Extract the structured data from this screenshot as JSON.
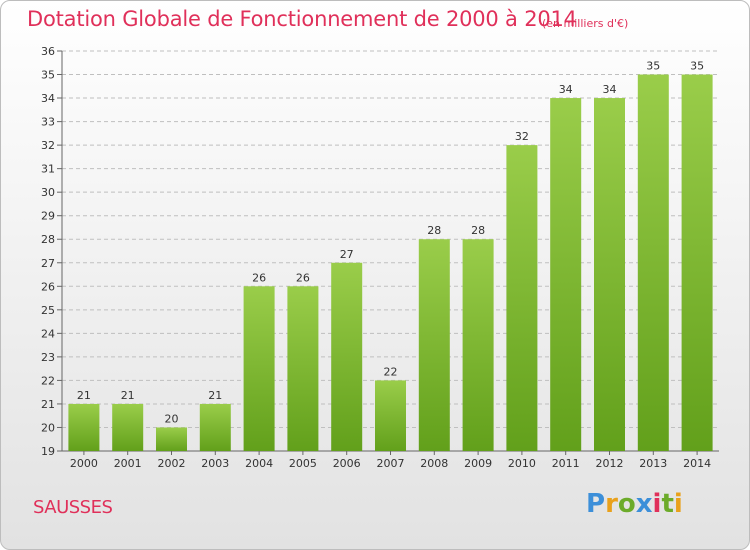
{
  "header": {
    "title": "Dotation Globale de Fonctionnement de 2000 à 2014",
    "subtitle": "(en milliers d'€)"
  },
  "footer": {
    "commune": "SAUSSES",
    "brand": "Proxiti"
  },
  "colors": {
    "title": "#e0305a",
    "bar_light": "#9acd4a",
    "bar_dark": "#62a01b",
    "grid": "#bfbfbf",
    "axis_text": "#333333"
  },
  "chart_data": {
    "type": "bar",
    "categories": [
      "2000",
      "2001",
      "2002",
      "2003",
      "2004",
      "2005",
      "2006",
      "2007",
      "2008",
      "2009",
      "2010",
      "2011",
      "2012",
      "2013",
      "2014"
    ],
    "values": [
      21,
      21,
      20,
      21,
      26,
      26,
      27,
      22,
      28,
      28,
      32,
      34,
      34,
      35,
      35
    ],
    "ylim": [
      19,
      36
    ],
    "yticks": [
      19,
      20,
      21,
      22,
      23,
      24,
      25,
      26,
      27,
      28,
      29,
      30,
      31,
      32,
      33,
      34,
      35,
      36
    ],
    "grid": true,
    "legend": "none",
    "data_labels": true
  }
}
